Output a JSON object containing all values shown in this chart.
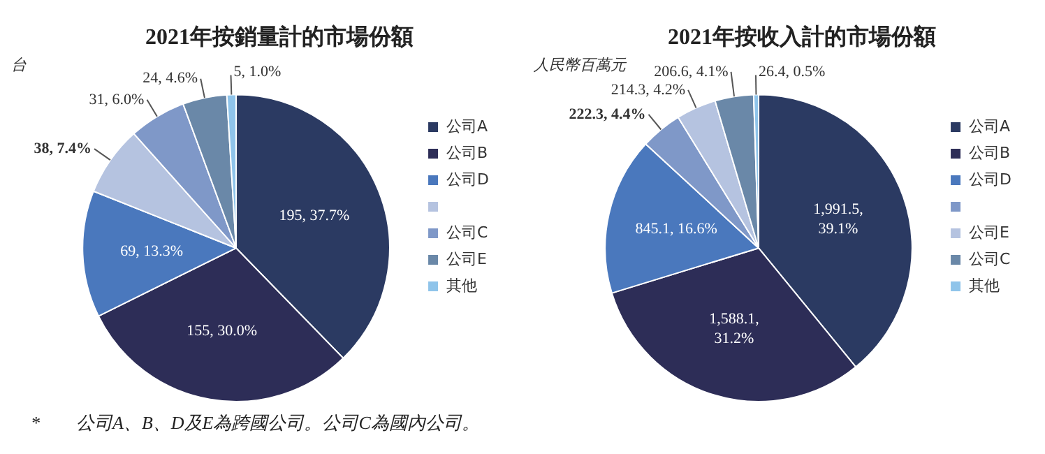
{
  "chart_data": [
    {
      "type": "pie",
      "title": "2021年按銷量計的市場份額",
      "annotations": [
        "台",
        "*　　公司A、B、D及E為跨國公司。公司C為國內公司。"
      ],
      "categories": [
        "公司A",
        "公司B",
        "公司D",
        null,
        "公司C",
        "公司E",
        "其他"
      ],
      "values": [
        195,
        155,
        69,
        38,
        31,
        24,
        5
      ],
      "value_labels": [
        "195, 37.7%",
        "155, 30.0%",
        "69, 13.3%",
        "38, 7.4%",
        "31, 6.0%",
        "24, 4.6%",
        "5, 1.0%"
      ],
      "colors": [
        "#2b3a62",
        "#2d2d57",
        "#4a78bd",
        "#b5c3e0",
        "#7f98c8",
        "#6a88a8",
        "#8fc4ea"
      ],
      "legend": "right"
    },
    {
      "type": "pie",
      "title": "2021年按收入計的市場份額",
      "annotations": [
        "人民幣百萬元"
      ],
      "categories": [
        "公司A",
        "公司B",
        "公司D",
        null,
        "公司E",
        "公司C",
        "其他"
      ],
      "values": [
        1991.5,
        1588.1,
        845.1,
        222.3,
        214.3,
        206.6,
        26.4
      ],
      "value_labels": [
        "1,991.5, 39.1%",
        "1,588.1, 31.2%",
        "845.1, 16.6%",
        "222.3, 4.4%",
        "214.3, 4.2%",
        "206.6, 4.1%",
        "26.4, 0.5%"
      ],
      "colors": [
        "#2b3a62",
        "#2d2d57",
        "#4a78bd",
        "#7f98c8",
        "#b5c3e0",
        "#6a88a8",
        "#8fc4ea"
      ],
      "legend": "right"
    }
  ]
}
